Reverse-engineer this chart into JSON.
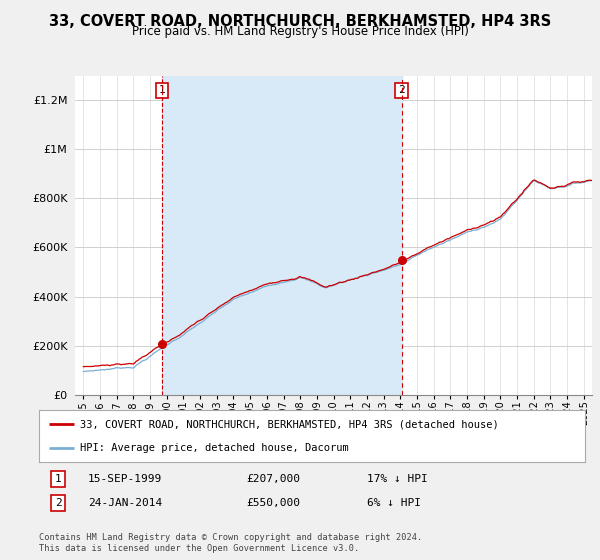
{
  "title": "33, COVERT ROAD, NORTHCHURCH, BERKHAMSTED, HP4 3RS",
  "subtitle": "Price paid vs. HM Land Registry's House Price Index (HPI)",
  "ylim": [
    0,
    1300000
  ],
  "yticks": [
    0,
    200000,
    400000,
    600000,
    800000,
    1000000,
    1200000
  ],
  "ytick_labels": [
    "£0",
    "£200K",
    "£400K",
    "£600K",
    "£800K",
    "£1M",
    "£1.2M"
  ],
  "sale1_date_num": 1999.71,
  "sale1_price": 207000,
  "sale2_date_num": 2014.07,
  "sale2_price": 550000,
  "property_color": "#cc0000",
  "hpi_color": "#7aafd4",
  "hpi_fill_color": "#d8eaf7",
  "vline_color": "#cc0000",
  "background_color": "#f0f0f0",
  "plot_bg_color": "#ffffff",
  "legend_property": "33, COVERT ROAD, NORTHCHURCH, BERKHAMSTED, HP4 3RS (detached house)",
  "legend_hpi": "HPI: Average price, detached house, Dacorum",
  "footer": "Contains HM Land Registry data © Crown copyright and database right 2024.\nThis data is licensed under the Open Government Licence v3.0.",
  "xmin": 1994.5,
  "xmax": 2025.5,
  "figwidth": 6.0,
  "figheight": 5.6,
  "dpi": 100
}
